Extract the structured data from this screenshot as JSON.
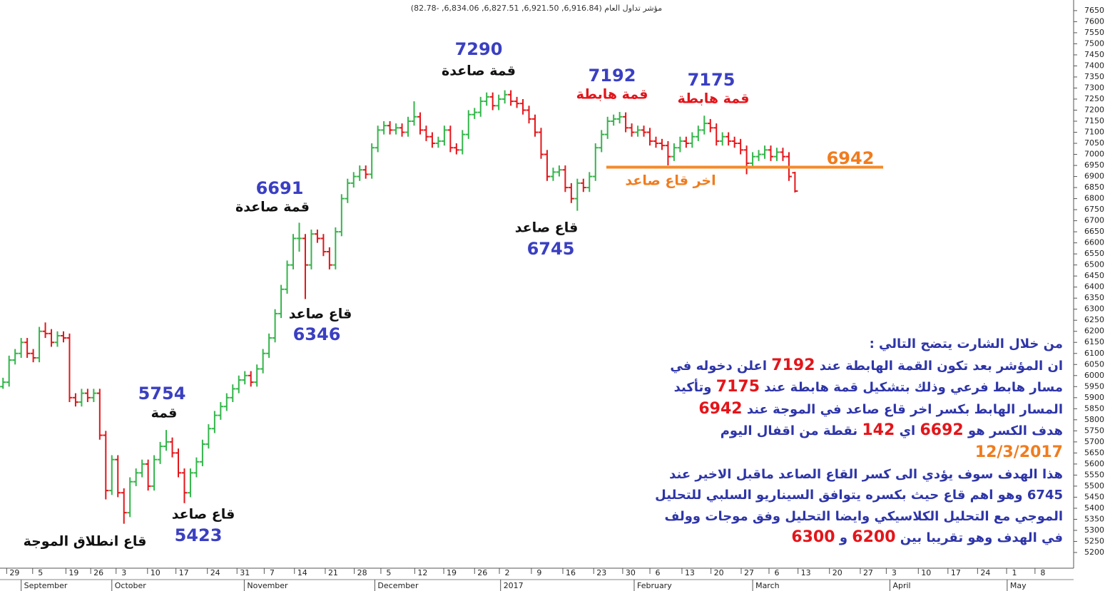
{
  "chart_data": {
    "type": "ohlc",
    "title": "مؤشر تداول العام (6,916.84, 6,921.50, 6,827.51, 6,834.06, -82.78)",
    "up_color": "#33b54a",
    "down_color": "#e3151a",
    "xlim": [
      0,
      177
    ],
    "ylim": [
      5129,
      7698
    ],
    "open": [
      5950,
      5970,
      6070,
      6100,
      6150,
      6100,
      6080,
      6200,
      6190,
      6150,
      6180,
      6170,
      5900,
      5880,
      5920,
      5900,
      5920,
      5730,
      5480,
      5620,
      5470,
      5380,
      5520,
      5560,
      5600,
      5500,
      5620,
      5680,
      5700,
      5650,
      5560,
      5470,
      5560,
      5610,
      5690,
      5760,
      5820,
      5860,
      5900,
      5940,
      5980,
      6000,
      5970,
      6030,
      6100,
      6170,
      6280,
      6390,
      6500,
      6620,
      6620,
      6500,
      6640,
      6620,
      6560,
      6500,
      6650,
      6800,
      6870,
      6900,
      6930,
      6910,
      7030,
      7110,
      7130,
      7110,
      7120,
      7100,
      7150,
      7170,
      7110,
      7080,
      7050,
      7060,
      7110,
      7030,
      7020,
      7090,
      7180,
      7190,
      7240,
      7260,
      7220,
      7250,
      7270,
      7240,
      7230,
      7200,
      7160,
      7100,
      7000,
      6900,
      6920,
      6930,
      6850,
      6800,
      6870,
      6850,
      6900,
      7030,
      7090,
      7150,
      7160,
      7170,
      7120,
      7100,
      7110,
      7100,
      7060,
      7050,
      7040,
      6990,
      7030,
      7060,
      7050,
      7080,
      7110,
      7140,
      7120,
      7060,
      7080,
      7060,
      7050,
      7020,
      6960,
      6990,
      7000,
      7020,
      6990,
      7010,
      6990,
      6916.84
    ],
    "high": [
      5990,
      6090,
      6120,
      6170,
      6170,
      6120,
      6220,
      6240,
      6210,
      6200,
      6200,
      6190,
      5920,
      5940,
      5940,
      5940,
      5940,
      5750,
      5640,
      5640,
      5490,
      5540,
      5580,
      5620,
      5620,
      5640,
      5700,
      5754,
      5720,
      5670,
      5580,
      5580,
      5630,
      5710,
      5780,
      5840,
      5880,
      5920,
      5960,
      6000,
      6020,
      6020,
      6050,
      6120,
      6190,
      6300,
      6410,
      6520,
      6640,
      6691,
      6640,
      6660,
      6660,
      6640,
      6580,
      6670,
      6820,
      6890,
      6920,
      6950,
      6950,
      7050,
      7130,
      7150,
      7150,
      7140,
      7140,
      7170,
      7240,
      7190,
      7130,
      7100,
      7080,
      7130,
      7130,
      7050,
      7110,
      7200,
      7210,
      7260,
      7280,
      7280,
      7270,
      7290,
      7290,
      7260,
      7250,
      7220,
      7180,
      7120,
      7020,
      6940,
      6950,
      6950,
      6870,
      6890,
      6890,
      6920,
      7050,
      7110,
      7170,
      7180,
      7192,
      7190,
      7140,
      7130,
      7130,
      7120,
      7080,
      7070,
      7060,
      7050,
      7080,
      7080,
      7100,
      7130,
      7175,
      7160,
      7140,
      7100,
      7100,
      7080,
      7070,
      7040,
      7010,
      7020,
      7040,
      7040,
      7030,
      7030,
      7010,
      6921.5
    ],
    "low": [
      5940,
      5950,
      6050,
      6080,
      6080,
      6060,
      6060,
      6170,
      6130,
      6130,
      6150,
      5880,
      5860,
      5860,
      5880,
      5880,
      5710,
      5440,
      5460,
      5450,
      5330,
      5360,
      5500,
      5540,
      5480,
      5480,
      5600,
      5660,
      5630,
      5540,
      5423,
      5450,
      5540,
      5590,
      5670,
      5740,
      5800,
      5840,
      5880,
      5920,
      5960,
      5950,
      5950,
      6010,
      6080,
      6150,
      6260,
      6370,
      6480,
      6560,
      6346,
      6480,
      6600,
      6540,
      6480,
      6480,
      6630,
      6780,
      6850,
      6880,
      6890,
      6890,
      7010,
      7090,
      7090,
      7090,
      7080,
      7080,
      7130,
      7090,
      7060,
      7030,
      7030,
      7040,
      7010,
      7000,
      7000,
      7070,
      7160,
      7170,
      7220,
      7200,
      7200,
      7230,
      7220,
      7210,
      7180,
      7140,
      7080,
      6980,
      6880,
      6880,
      6900,
      6830,
      6780,
      6745,
      6830,
      6830,
      6880,
      7010,
      7070,
      7130,
      7140,
      7100,
      7080,
      7080,
      7080,
      7040,
      7030,
      7020,
      6950,
      6970,
      7010,
      7030,
      7030,
      7060,
      7090,
      7100,
      7040,
      7040,
      7040,
      7030,
      7000,
      6910,
      6940,
      6970,
      6980,
      6970,
      6970,
      6970,
      6880,
      6827.51
    ],
    "close": [
      5970,
      6070,
      6100,
      6150,
      6100,
      6080,
      6200,
      6190,
      6150,
      6180,
      6170,
      5900,
      5880,
      5920,
      5900,
      5920,
      5730,
      5480,
      5620,
      5470,
      5380,
      5520,
      5560,
      5600,
      5500,
      5620,
      5680,
      5700,
      5650,
      5560,
      5470,
      5560,
      5610,
      5690,
      5760,
      5820,
      5860,
      5900,
      5940,
      5980,
      6000,
      5970,
      6030,
      6100,
      6170,
      6280,
      6390,
      6500,
      6620,
      6620,
      6500,
      6640,
      6620,
      6560,
      6500,
      6650,
      6800,
      6870,
      6900,
      6930,
      6910,
      7030,
      7110,
      7130,
      7110,
      7120,
      7100,
      7150,
      7170,
      7110,
      7080,
      7050,
      7060,
      7110,
      7030,
      7020,
      7090,
      7180,
      7190,
      7240,
      7260,
      7220,
      7250,
      7270,
      7240,
      7230,
      7200,
      7160,
      7100,
      7000,
      6900,
      6920,
      6930,
      6850,
      6800,
      6870,
      6850,
      6900,
      7030,
      7090,
      7150,
      7160,
      7170,
      7120,
      7100,
      7110,
      7100,
      7060,
      7050,
      7040,
      6990,
      7030,
      7060,
      7050,
      7080,
      7110,
      7140,
      7120,
      7060,
      7080,
      7060,
      7050,
      7020,
      6960,
      6990,
      7000,
      7020,
      6990,
      7010,
      6990,
      6900,
      6834.06
    ],
    "yticks": [
      5200,
      5250,
      5300,
      5350,
      5400,
      5450,
      5500,
      5550,
      5600,
      5650,
      5700,
      5750,
      5800,
      5850,
      5900,
      5950,
      6000,
      6050,
      6100,
      6150,
      6200,
      6250,
      6300,
      6350,
      6400,
      6450,
      6500,
      6550,
      6600,
      6650,
      6700,
      6750,
      6800,
      6850,
      6900,
      6950,
      7000,
      7050,
      7100,
      7150,
      7200,
      7250,
      7300,
      7350,
      7400,
      7450,
      7500,
      7550,
      7600,
      7650
    ],
    "xticks": [
      {
        "value": 2.4,
        "label": "29"
      },
      {
        "value": 6.7,
        "label": "5"
      },
      {
        "value": 12.2,
        "label": "19"
      },
      {
        "value": 16.3,
        "label": "26"
      },
      {
        "value": 20.5,
        "label": "3"
      },
      {
        "value": 25.7,
        "label": "10"
      },
      {
        "value": 30.4,
        "label": "17"
      },
      {
        "value": 35.6,
        "label": "24"
      },
      {
        "value": 40.5,
        "label": "31"
      },
      {
        "value": 45.0,
        "label": "7"
      },
      {
        "value": 50.0,
        "label": "14"
      },
      {
        "value": 55.1,
        "label": "21"
      },
      {
        "value": 59.9,
        "label": "28"
      },
      {
        "value": 64.3,
        "label": "5"
      },
      {
        "value": 69.9,
        "label": "12"
      },
      {
        "value": 74.7,
        "label": "19"
      },
      {
        "value": 79.8,
        "label": "26"
      },
      {
        "value": 83.9,
        "label": "2"
      },
      {
        "value": 89.2,
        "label": "9"
      },
      {
        "value": 94.4,
        "label": "16"
      },
      {
        "value": 99.5,
        "label": "23"
      },
      {
        "value": 104.3,
        "label": "30"
      },
      {
        "value": 108.8,
        "label": "6"
      },
      {
        "value": 114.1,
        "label": "13"
      },
      {
        "value": 118.9,
        "label": "20"
      },
      {
        "value": 123.9,
        "label": "27"
      },
      {
        "value": 128.5,
        "label": "6"
      },
      {
        "value": 133.3,
        "label": "13"
      },
      {
        "value": 138.5,
        "label": "20"
      },
      {
        "value": 143.6,
        "label": "27"
      },
      {
        "value": 147.9,
        "label": "3"
      },
      {
        "value": 153.2,
        "label": "10"
      },
      {
        "value": 158.1,
        "label": "17"
      },
      {
        "value": 163.0,
        "label": "24"
      },
      {
        "value": 167.8,
        "label": "1"
      },
      {
        "value": 172.5,
        "label": "8"
      }
    ],
    "months": [
      {
        "value": 3.5,
        "label": "September"
      },
      {
        "value": 18.5,
        "label": "October"
      },
      {
        "value": 40.4,
        "label": "November"
      },
      {
        "value": 62.0,
        "label": "December"
      },
      {
        "value": 82.8,
        "label": "2017"
      },
      {
        "value": 104.9,
        "label": "February"
      },
      {
        "value": 124.5,
        "label": "March"
      },
      {
        "value": 147.2,
        "label": "April"
      },
      {
        "value": 166.6,
        "label": "May"
      }
    ],
    "annotations": [
      {
        "number": 5754,
        "text": "قمة",
        "number_color": "#3a3fc2",
        "text_color": "#111111"
      },
      {
        "number": 5423,
        "text": "قاع صاعد",
        "number_color": "#3a3fc2",
        "text_color": "#111111"
      },
      {
        "text": "قاع انطلاق الموجة",
        "text_color": "#111111"
      },
      {
        "number": 6691,
        "text": "قمة صاعدة",
        "number_color": "#3a3fc2",
        "text_color": "#111111"
      },
      {
        "number": 6346,
        "text": "قاع صاعد",
        "number_color": "#3a3fc2",
        "text_color": "#111111"
      },
      {
        "number": 7290,
        "text": "قمة صاعدة",
        "number_color": "#3a3fc2",
        "text_color": "#111111"
      },
      {
        "number": 6745,
        "text": "قاع صاعد",
        "number_color": "#3a3fc2",
        "text_color": "#111111"
      },
      {
        "number": 7192,
        "text": "قمة هابطة",
        "number_color": "#3a3fc2",
        "text_color": "#e3151a"
      },
      {
        "number": 7175,
        "text": "قمة هابطة",
        "number_color": "#3a3fc2",
        "text_color": "#e3151a"
      },
      {
        "number": 6942,
        "text": "اخر قاع صاعد",
        "number_color": "#f07c1e",
        "text_color": "#f07c1e"
      }
    ],
    "level_color": "#f58a2a",
    "commentary": [
      [
        {
          "text": "من خلال الشارت يتضح التالي :",
          "color": "#2e35a8"
        }
      ],
      [
        {
          "text": "ان المؤشر بعد تكون القمة الهابطة عند ",
          "color": "#2e35a8"
        },
        {
          "text": "7192",
          "color": "#e3151a"
        },
        {
          "text": " اعلن دخوله في",
          "color": "#2e35a8"
        }
      ],
      [
        {
          "text": "مسار هابط فرعي وذلك بتشكيل قمة هابطة عند ",
          "color": "#2e35a8"
        },
        {
          "text": "7175",
          "color": "#e3151a"
        },
        {
          "text": " وتأكيد",
          "color": "#2e35a8"
        }
      ],
      [
        {
          "text": "المسار الهابط بكسر اخر قاع صاعد في الموجة عند ",
          "color": "#2e35a8"
        },
        {
          "text": "6942",
          "color": "#e3151a"
        }
      ],
      [
        {
          "text": "هدف الكسر هو ",
          "color": "#2e35a8"
        },
        {
          "text": "6692",
          "color": "#e3151a"
        },
        {
          "text": " اي ",
          "color": "#2e35a8"
        },
        {
          "text": "142",
          "color": "#e3151a"
        },
        {
          "text": " نقطة من اقفال اليوم",
          "color": "#2e35a8"
        }
      ],
      [
        {
          "text": "12/3/2017",
          "color": "#f07c1e"
        }
      ],
      [
        {
          "text": "هذا الهدف سوف يؤدي الى كسر القاع الصاعد ماقبل الاخير عند",
          "color": "#2e35a8"
        }
      ],
      [
        {
          "text": "6745",
          "color": "#2e35a8"
        },
        {
          "text": " وهو اهم قاع حيث بكسره يتوافق السيناريو السلبي للتحليل",
          "color": "#2e35a8"
        }
      ],
      [
        {
          "text": "الموجي مع التحليل الكلاسيكي  وايضا التحليل وفق موجات وولف",
          "color": "#2e35a8"
        }
      ],
      [
        {
          "text": "في الهدف وهو تقريبا بين ",
          "color": "#2e35a8"
        },
        {
          "text": "6200",
          "color": "#e3151a"
        },
        {
          "text": " و ",
          "color": "#2e35a8"
        },
        {
          "text": "6300",
          "color": "#e3151a"
        }
      ]
    ]
  }
}
